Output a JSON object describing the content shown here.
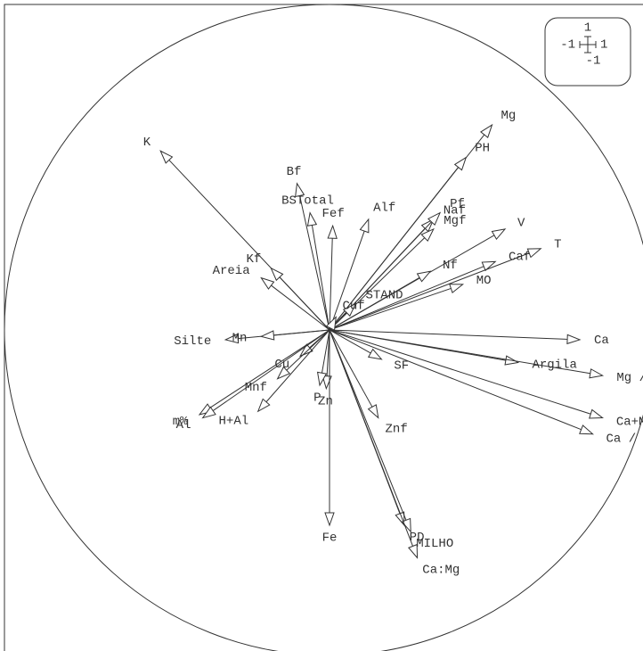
{
  "chart_data": {
    "type": "correlation-circle",
    "xlim": [
      -1,
      1
    ],
    "ylim": [
      -1,
      1
    ],
    "xticks": [
      -1,
      1
    ],
    "yticks": [
      -1,
      1
    ],
    "vectors": [
      {
        "name": "Mg",
        "x": 0.5,
        "y": 0.63
      },
      {
        "name": "PH",
        "x": 0.42,
        "y": 0.53
      },
      {
        "name": "K",
        "x": -0.52,
        "y": 0.55
      },
      {
        "name": "Bf",
        "x": -0.1,
        "y": 0.45
      },
      {
        "name": "BSTotal",
        "x": -0.06,
        "y": 0.36
      },
      {
        "name": "Fef",
        "x": 0.01,
        "y": 0.32
      },
      {
        "name": "Alf",
        "x": 0.12,
        "y": 0.34
      },
      {
        "name": "Naf",
        "x": 0.32,
        "y": 0.34
      },
      {
        "name": "Pf",
        "x": 0.34,
        "y": 0.36
      },
      {
        "name": "Mgf",
        "x": 0.32,
        "y": 0.31
      },
      {
        "name": "V",
        "x": 0.54,
        "y": 0.31
      },
      {
        "name": "Caf",
        "x": 0.51,
        "y": 0.21
      },
      {
        "name": "T",
        "x": 0.65,
        "y": 0.25
      },
      {
        "name": "Nf",
        "x": 0.31,
        "y": 0.18
      },
      {
        "name": "MO",
        "x": 0.41,
        "y": 0.14
      },
      {
        "name": "STAND",
        "x": 0.08,
        "y": 0.08
      },
      {
        "name": "Kf",
        "x": -0.18,
        "y": 0.19
      },
      {
        "name": "Areia",
        "x": -0.21,
        "y": 0.16
      },
      {
        "name": "Cuf",
        "x": 0.02,
        "y": 0.04
      },
      {
        "name": "Silte",
        "x": -0.32,
        "y": -0.03
      },
      {
        "name": "Mn",
        "x": -0.21,
        "y": -0.02
      },
      {
        "name": "Ca",
        "x": 0.77,
        "y": -0.03
      },
      {
        "name": "Argila",
        "x": 0.58,
        "y": -0.1
      },
      {
        "name": "Mg / K",
        "x": 0.84,
        "y": -0.14
      },
      {
        "name": "SF",
        "x": 0.16,
        "y": -0.09
      },
      {
        "name": "Cu",
        "x": -0.09,
        "y": -0.08
      },
      {
        "name": "Mnf",
        "x": -0.16,
        "y": -0.15
      },
      {
        "name": "H+Al",
        "x": -0.22,
        "y": -0.25
      },
      {
        "name": "Zn",
        "x": -0.01,
        "y": -0.18
      },
      {
        "name": "P",
        "x": -0.03,
        "y": -0.17
      },
      {
        "name": "Znf",
        "x": 0.15,
        "y": -0.27
      },
      {
        "name": "PD",
        "x": 0.23,
        "y": -0.6
      },
      {
        "name": "MILHO",
        "x": 0.25,
        "y": -0.62
      },
      {
        "name": "Ca:Mg",
        "x": 0.27,
        "y": -0.7
      },
      {
        "name": "Fe",
        "x": 0.0,
        "y": -0.6
      },
      {
        "name": "m%",
        "x": -0.4,
        "y": -0.26
      },
      {
        "name": "Al",
        "x": -0.39,
        "y": -0.27
      },
      {
        "name": "Ca+Mg / K",
        "x": 0.84,
        "y": -0.27
      },
      {
        "name": "Ca / K",
        "x": 0.81,
        "y": -0.32
      }
    ]
  }
}
